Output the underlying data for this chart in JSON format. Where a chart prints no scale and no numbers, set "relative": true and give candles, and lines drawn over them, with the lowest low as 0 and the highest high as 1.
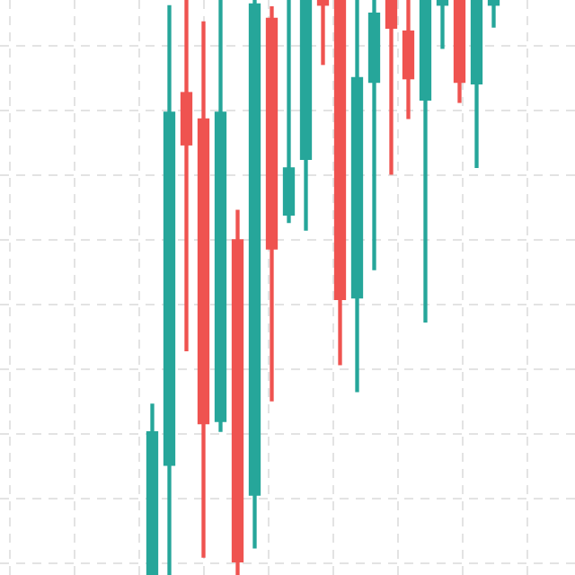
{
  "chart_data": {
    "type": "candlestick",
    "relative": true,
    "grid": true,
    "categories": [
      null,
      null,
      null,
      null,
      null,
      null,
      null,
      null,
      null,
      null,
      null,
      null,
      null,
      null,
      null,
      null,
      null,
      null,
      null,
      null,
      null
    ],
    "ohlc": [
      [
        0,
        0.297,
        0,
        0.25
      ],
      [
        0.19,
        0.99,
        0,
        0.806
      ],
      [
        0.84,
        1,
        0.39,
        0.747
      ],
      [
        0.794,
        0.962,
        0.031,
        0.262
      ],
      [
        0.266,
        1,
        0.25,
        0.806
      ],
      [
        0.584,
        0.634,
        0,
        0.022
      ],
      [
        0.138,
        1,
        0.047,
        0.994
      ],
      [
        0.969,
        0.988,
        0.303,
        0.566
      ],
      [
        0.625,
        1,
        0.613,
        0.709
      ],
      [
        0.722,
        1,
        0.6,
        1
      ],
      [
        1,
        1,
        0.888,
        0.99
      ],
      [
        1,
        1,
        0.366,
        0.478
      ],
      [
        0.481,
        1,
        0.319,
        0.866
      ],
      [
        0.856,
        1,
        0.531,
        0.978
      ],
      [
        1,
        1,
        0.697,
        0.95
      ],
      [
        0.947,
        1,
        0.794,
        0.862
      ],
      [
        0.825,
        1,
        0.44,
        1
      ],
      [
        0.99,
        1,
        0.916,
        1
      ],
      [
        1,
        1,
        0.822,
        0.856
      ],
      [
        0.853,
        1,
        0.709,
        1
      ],
      [
        0.99,
        1,
        0.953,
        1
      ]
    ],
    "colors": [
      "#26a69a",
      "#26a69a",
      "#ef5350",
      "#ef5350",
      "#26a69a",
      "#ef5350",
      "#26a69a",
      "#ef5350",
      "#26a69a",
      "#26a69a",
      "#ef5350",
      "#ef5350",
      "#26a69a",
      "#26a69a",
      "#ef5350",
      "#ef5350",
      "#26a69a",
      "#26a69a",
      "#ef5350",
      "#26a69a",
      "#26a69a"
    ]
  }
}
